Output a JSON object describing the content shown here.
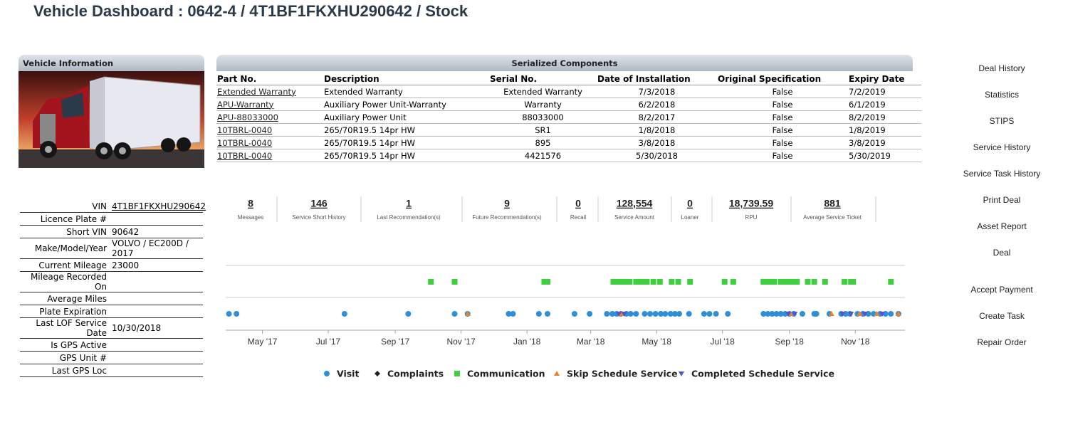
{
  "header": {
    "title": "Vehicle Dashboard : 0642-4 / 4T1BF1FKXHU290642 / Stock"
  },
  "vehicle_information": {
    "title": "Vehicle Information",
    "fields": [
      {
        "label": "VIN",
        "value": "4T1BF1FKXHU290642"
      },
      {
        "label": "Licence Plate #"
      },
      {
        "label": "Short VIN",
        "value": "90642"
      },
      {
        "label": "Make/Model/Year",
        "value": "VOLVO / EC200D / 2017"
      },
      {
        "label": "Current Mileage",
        "value": "23000"
      },
      {
        "label": "Mileage Recorded On"
      },
      {
        "label": "Average Miles"
      },
      {
        "label": "Plate Expiration"
      },
      {
        "label": "Last LOF Service Date",
        "value": "10/30/2018"
      },
      {
        "label": "Is GPS Active"
      },
      {
        "label": "GPS Unit #"
      },
      {
        "label": "Last GPS Loc"
      }
    ]
  },
  "serialized_components": {
    "title": "Serialized Components",
    "columns": [
      "Part No.",
      "Description",
      "Serial No.",
      "Date of Installation",
      "Original Specification",
      "Expiry Date"
    ],
    "rows": [
      [
        "Extended Warranty",
        "Extended Warranty",
        "Extended Warranty",
        "7/3/2018",
        "False",
        "7/2/2019"
      ],
      [
        "APU-Warranty",
        "Auxiliary Power Unit-Warranty",
        "Warranty",
        "6/2/2018",
        "False",
        "6/1/2019"
      ],
      [
        "APU-88033000",
        "Auxiliary Power Unit",
        "88033000",
        "8/2/2017",
        "False",
        "8/2/2019"
      ],
      [
        "10TBRL-0040",
        "265/70R19.5 14pr HW",
        "SR1",
        "1/8/2018",
        "False",
        "1/8/2019"
      ],
      [
        "10TBRL-0040",
        "265/70R19.5 14pr HW",
        "895",
        "3/8/2018",
        "False",
        "3/8/2019"
      ],
      [
        "10TBRL-0040",
        "265/70R19.5 14pr HW",
        "4421576",
        "5/30/2018",
        "False",
        "5/30/2019"
      ]
    ]
  },
  "stats": [
    {
      "value": "8",
      "label": "Messages"
    },
    {
      "value": "146",
      "label": "Service Short History"
    },
    {
      "value": "1",
      "label": "Last Recommendation(s)"
    },
    {
      "value": "9",
      "label": "Future Recommendation(s)"
    },
    {
      "value": "0",
      "label": "Recall"
    },
    {
      "value": "128,554",
      "label": "Service Amount"
    },
    {
      "value": "0",
      "label": "Loaner"
    },
    {
      "value": "18,739.59",
      "label": "RPU"
    },
    {
      "value": "881",
      "label": "Average Service Ticket"
    }
  ],
  "menu": [
    "Deal History",
    "Statistics",
    "STIPS",
    "Service History",
    "Service Task History",
    "Print Deal",
    "Asset Report",
    "Deal",
    "Accept Payment",
    "Create Task",
    "Repair Order"
  ],
  "timeline": {
    "type": "scatter",
    "xlim": [
      "2017-03-28",
      "2018-12-17"
    ],
    "xticks": [
      {
        "value": "2017-05",
        "label": "May '17"
      },
      {
        "value": "2017-07",
        "label": "Jul '17"
      },
      {
        "value": "2017-09",
        "label": "Sep '17"
      },
      {
        "value": "2017-11",
        "label": "Nov '17"
      },
      {
        "value": "2018-01",
        "label": "Jan '18"
      },
      {
        "value": "2018-03",
        "label": "Mar '18"
      },
      {
        "value": "2018-05",
        "label": "May '18"
      },
      {
        "value": "2018-07",
        "label": "Jul '18"
      },
      {
        "value": "2018-09",
        "label": "Sep '18"
      },
      {
        "value": "2018-11",
        "label": "Nov '18"
      }
    ],
    "series": [
      {
        "name": "Visit",
        "color": "#2f8fd8",
        "marker": "circle",
        "x": [
          "2017-03-31",
          "2017-04-07",
          "2017-07-16",
          "2017-09-13",
          "2017-10-26",
          "2017-11-07",
          "2017-12-15",
          "2017-12-19",
          "2018-01-12",
          "2018-01-20",
          "2018-02-14",
          "2018-02-28",
          "2018-03-16",
          "2018-03-21",
          "2018-03-25",
          "2018-03-29",
          "2018-04-03",
          "2018-04-07",
          "2018-04-12",
          "2018-04-20",
          "2018-04-25",
          "2018-04-30",
          "2018-05-05",
          "2018-05-09",
          "2018-05-14",
          "2018-05-18",
          "2018-05-22",
          "2018-05-31",
          "2018-06-14",
          "2018-06-19",
          "2018-06-25",
          "2018-07-06",
          "2018-08-08",
          "2018-08-12",
          "2018-08-16",
          "2018-08-20",
          "2018-08-24",
          "2018-08-28",
          "2018-09-01",
          "2018-09-05",
          "2018-09-13",
          "2018-09-24",
          "2018-09-26",
          "2018-10-08",
          "2018-10-19",
          "2018-10-23",
          "2018-10-27",
          "2018-11-03",
          "2018-11-08",
          "2018-11-13",
          "2018-11-18",
          "2018-11-24",
          "2018-11-29",
          "2018-12-04",
          "2018-12-11"
        ]
      },
      {
        "name": "Complaints",
        "color": "#222222",
        "marker": "diamond",
        "x": []
      },
      {
        "name": "Communication",
        "color": "#3ecf3e",
        "marker": "square",
        "x": [
          "2017-10-04",
          "2017-10-26",
          "2018-01-17",
          "2018-01-20",
          "2018-03-22",
          "2018-03-27",
          "2018-04-01",
          "2018-04-06",
          "2018-04-12",
          "2018-04-17",
          "2018-04-22",
          "2018-04-28",
          "2018-05-04",
          "2018-05-15",
          "2018-05-21",
          "2018-06-01",
          "2018-07-03",
          "2018-07-11",
          "2018-08-08",
          "2018-08-13",
          "2018-08-18",
          "2018-08-24",
          "2018-08-29",
          "2018-09-03",
          "2018-09-08",
          "2018-09-18",
          "2018-09-24",
          "2018-10-04",
          "2018-10-22",
          "2018-10-28",
          "2018-10-30",
          "2018-12-04"
        ]
      },
      {
        "name": "Skip Schedule Service",
        "color": "#e8822a",
        "marker": "triangle",
        "x": [
          "2017-11-07",
          "2018-03-29",
          "2018-09-02",
          "2018-10-10",
          "2018-11-05",
          "2018-11-21",
          "2018-12-11"
        ]
      },
      {
        "name": "Completed Schedule Service",
        "color": "#5454c8",
        "marker": "triangle-down",
        "x": [
          "2018-03-27",
          "2018-04-01",
          "2018-08-31",
          "2018-09-06",
          "2018-10-20",
          "2018-10-28",
          "2018-11-10",
          "2018-11-26"
        ]
      }
    ]
  }
}
